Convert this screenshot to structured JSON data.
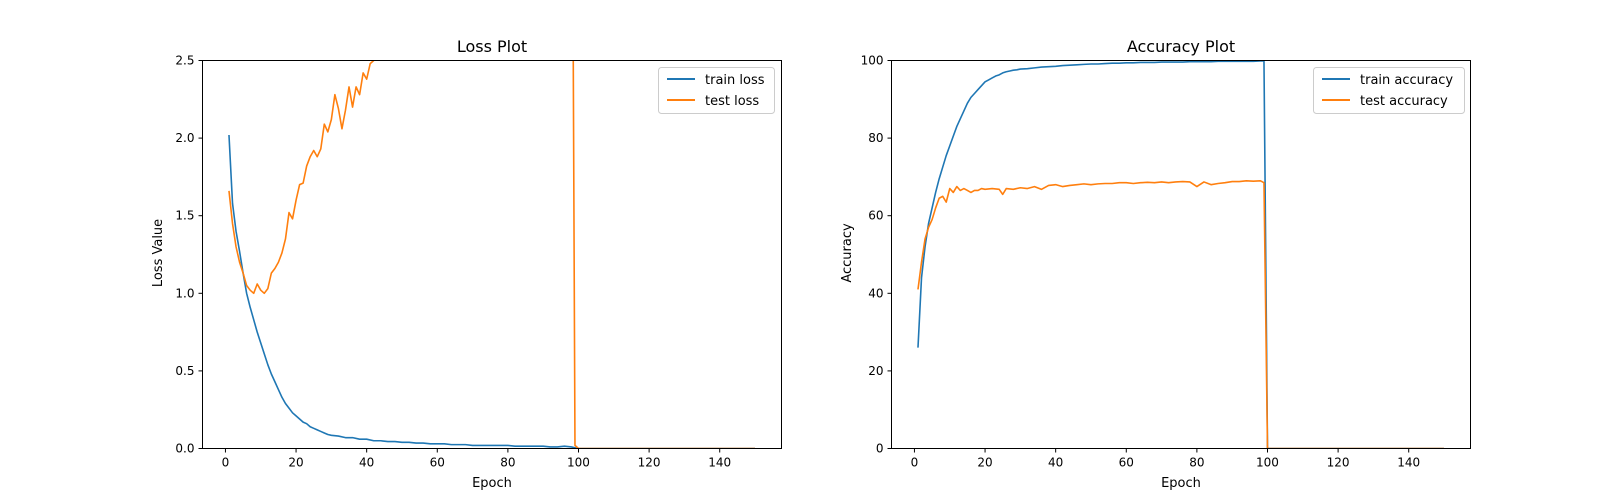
{
  "colors": {
    "train": "#1f77b4",
    "test": "#ff7f0e"
  },
  "chart_data": [
    {
      "type": "line",
      "title": "Loss Plot",
      "xlabel": "Epoch",
      "ylabel": "Loss Value",
      "xlim": [
        -6.5,
        157.5
      ],
      "ylim": [
        0,
        2.5
      ],
      "xticks": [
        0,
        20,
        40,
        60,
        80,
        100,
        120,
        140
      ],
      "yticks": [
        0.0,
        0.5,
        1.0,
        1.5,
        2.0,
        2.5
      ],
      "ytick_labels": [
        "0.0",
        "0.5",
        "1.0",
        "1.5",
        "2.0",
        "2.5"
      ],
      "legend": "top-right",
      "series": [
        {
          "name": "train loss",
          "color": "#1f77b4",
          "x": [
            1,
            2,
            3,
            4,
            5,
            6,
            7,
            8,
            9,
            10,
            11,
            12,
            13,
            14,
            15,
            16,
            17,
            18,
            19,
            20,
            21,
            22,
            23,
            24,
            25,
            26,
            27,
            28,
            29,
            30,
            32,
            34,
            36,
            38,
            40,
            42,
            44,
            46,
            48,
            50,
            52,
            54,
            56,
            58,
            60,
            62,
            64,
            66,
            68,
            70,
            72,
            74,
            76,
            78,
            80,
            82,
            84,
            86,
            88,
            90,
            92,
            94,
            96,
            98,
            99,
            100,
            110,
            120,
            130,
            140,
            150
          ],
          "y": [
            2.02,
            1.58,
            1.4,
            1.27,
            1.13,
            1.0,
            0.91,
            0.83,
            0.75,
            0.68,
            0.61,
            0.54,
            0.48,
            0.43,
            0.38,
            0.33,
            0.29,
            0.26,
            0.23,
            0.21,
            0.19,
            0.17,
            0.16,
            0.14,
            0.13,
            0.12,
            0.11,
            0.1,
            0.09,
            0.085,
            0.08,
            0.07,
            0.07,
            0.06,
            0.06,
            0.05,
            0.05,
            0.045,
            0.045,
            0.04,
            0.04,
            0.035,
            0.035,
            0.03,
            0.03,
            0.03,
            0.025,
            0.025,
            0.025,
            0.02,
            0.02,
            0.02,
            0.02,
            0.02,
            0.02,
            0.015,
            0.015,
            0.015,
            0.015,
            0.015,
            0.01,
            0.01,
            0.015,
            0.01,
            0.005,
            0,
            0,
            0,
            0,
            0,
            0
          ]
        },
        {
          "name": "test loss",
          "color": "#ff7f0e",
          "x": [
            1,
            2,
            3,
            4,
            5,
            6,
            7,
            8,
            9,
            10,
            11,
            12,
            13,
            14,
            15,
            16,
            17,
            18,
            19,
            20,
            21,
            22,
            23,
            24,
            25,
            26,
            27,
            28,
            29,
            30,
            31,
            32,
            33,
            34,
            35,
            36,
            37,
            38,
            39,
            40,
            41,
            42,
            43,
            98,
            98.5,
            99,
            100,
            150
          ],
          "y": [
            1.66,
            1.45,
            1.3,
            1.2,
            1.13,
            1.05,
            1.02,
            1.0,
            1.06,
            1.02,
            1.0,
            1.03,
            1.13,
            1.16,
            1.2,
            1.26,
            1.35,
            1.52,
            1.48,
            1.6,
            1.7,
            1.71,
            1.82,
            1.88,
            1.92,
            1.88,
            1.93,
            2.09,
            2.04,
            2.12,
            2.28,
            2.19,
            2.06,
            2.18,
            2.33,
            2.2,
            2.33,
            2.28,
            2.42,
            2.38,
            2.48,
            2.5,
            2.6,
            3.5,
            2.6,
            0.02,
            0,
            0
          ]
        }
      ]
    },
    {
      "type": "line",
      "title": "Accuracy Plot",
      "xlabel": "Epoch",
      "ylabel": "Accuracy",
      "xlim": [
        -6.5,
        157.5
      ],
      "ylim": [
        0,
        100
      ],
      "xticks": [
        0,
        20,
        40,
        60,
        80,
        100,
        120,
        140
      ],
      "yticks": [
        0,
        20,
        40,
        60,
        80,
        100
      ],
      "ytick_labels": [
        "0",
        "20",
        "40",
        "60",
        "80",
        "100"
      ],
      "legend": "top-right",
      "series": [
        {
          "name": "train accuracy",
          "color": "#1f77b4",
          "x": [
            1,
            2,
            3,
            4,
            5,
            6,
            7,
            8,
            9,
            10,
            11,
            12,
            13,
            14,
            15,
            16,
            17,
            18,
            19,
            20,
            21,
            22,
            23,
            24,
            25,
            26,
            27,
            28,
            29,
            30,
            32,
            34,
            36,
            38,
            40,
            42,
            44,
            46,
            48,
            50,
            52,
            54,
            56,
            58,
            60,
            62,
            64,
            66,
            68,
            70,
            72,
            74,
            76,
            78,
            80,
            82,
            84,
            86,
            88,
            90,
            92,
            94,
            96,
            98,
            99,
            100,
            110,
            120,
            130,
            140,
            150
          ],
          "y": [
            26,
            44,
            52,
            58,
            62,
            66,
            69.5,
            72.5,
            75.5,
            78,
            80.5,
            83,
            85,
            87,
            89,
            90.5,
            91.5,
            92.5,
            93.5,
            94.5,
            95,
            95.5,
            96,
            96.3,
            96.8,
            97.1,
            97.3,
            97.5,
            97.6,
            97.8,
            97.9,
            98.1,
            98.3,
            98.4,
            98.5,
            98.7,
            98.8,
            98.9,
            99,
            99.1,
            99.1,
            99.2,
            99.3,
            99.3,
            99.4,
            99.4,
            99.5,
            99.5,
            99.5,
            99.6,
            99.6,
            99.6,
            99.6,
            99.7,
            99.7,
            99.7,
            99.7,
            99.8,
            99.8,
            99.8,
            99.8,
            99.8,
            99.8,
            99.9,
            99.9,
            0,
            0,
            0,
            0,
            0,
            0
          ]
        },
        {
          "name": "test accuracy",
          "color": "#ff7f0e",
          "x": [
            1,
            2,
            3,
            4,
            5,
            6,
            7,
            8,
            9,
            10,
            11,
            12,
            13,
            14,
            15,
            16,
            17,
            18,
            19,
            20,
            22,
            24,
            25,
            26,
            28,
            30,
            32,
            34,
            36,
            38,
            40,
            42,
            44,
            46,
            48,
            50,
            52,
            54,
            56,
            58,
            60,
            62,
            64,
            66,
            68,
            70,
            72,
            74,
            76,
            78,
            80,
            82,
            84,
            86,
            88,
            90,
            92,
            94,
            96,
            98,
            99,
            100,
            150
          ],
          "y": [
            41,
            48,
            54,
            57,
            59,
            62,
            64.5,
            65,
            63.5,
            67,
            66,
            67.5,
            66.5,
            67,
            66.5,
            66,
            66.5,
            66.5,
            67,
            66.8,
            67,
            66.8,
            65.5,
            67,
            66.8,
            67.2,
            67,
            67.5,
            66.8,
            67.8,
            68,
            67.5,
            67.8,
            68,
            68.2,
            68,
            68.2,
            68.3,
            68.3,
            68.5,
            68.5,
            68.3,
            68.5,
            68.6,
            68.5,
            68.7,
            68.5,
            68.7,
            68.8,
            68.7,
            67.5,
            68.7,
            68,
            68.3,
            68.5,
            68.8,
            68.8,
            69,
            68.9,
            69,
            68.5,
            0,
            0
          ]
        }
      ]
    }
  ]
}
